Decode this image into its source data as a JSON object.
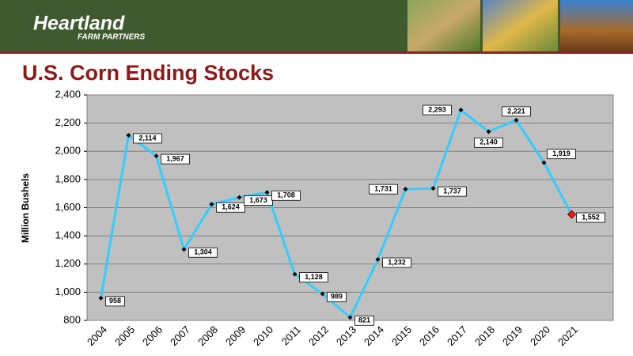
{
  "header": {
    "logo": "Heartland",
    "logo_sub": "FARM PARTNERS"
  },
  "chart_data": {
    "type": "line",
    "title": "U.S. Corn Ending Stocks",
    "y_label": "Million Bushels",
    "categories": [
      "2004",
      "2005",
      "2006",
      "2007",
      "2008",
      "2009",
      "2010",
      "2011",
      "2012",
      "2013",
      "2014",
      "2015",
      "2016",
      "2017",
      "2018",
      "2019",
      "2020",
      "2021"
    ],
    "values": [
      958,
      2114,
      1967,
      1304,
      1624,
      1673,
      1708,
      1128,
      989,
      821,
      1232,
      1731,
      1737,
      2293,
      2140,
      2221,
      1919,
      1552
    ],
    "value_labels": [
      "958",
      "2,114",
      "1,967",
      "1,304",
      "1,624",
      "1,673",
      "1,708",
      "1,128",
      "989",
      "821",
      "1,232",
      "1,731",
      "1,737",
      "2,293",
      "2,140",
      "2,221",
      "1,919",
      "1,552"
    ],
    "color": "#33ccff",
    "ylim": [
      800,
      2400
    ],
    "yticks": [
      800,
      {
        "value": 1000,
        "label": "1,000"
      },
      {
        "value": 1200,
        "label": "1,200"
      },
      {
        "value": 1400,
        "label": "1,400"
      },
      {
        "value": 1600,
        "label": "1,600"
      },
      {
        "value": 1800,
        "label": "1,800"
      },
      {
        "value": 2000,
        "label": "2,000"
      },
      {
        "value": 2200,
        "label": "2,200"
      },
      {
        "value": 2400,
        "label": "2,400"
      }
    ],
    "grid": true
  }
}
